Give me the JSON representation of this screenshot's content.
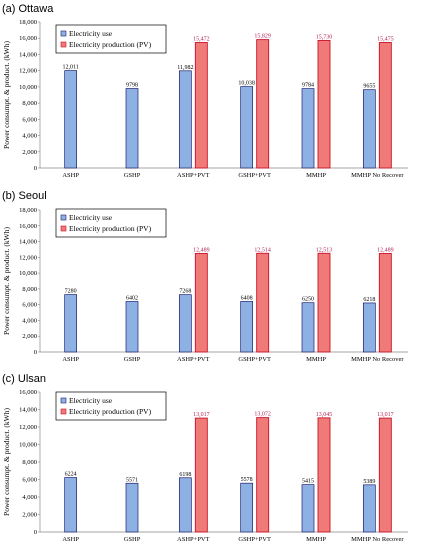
{
  "chart_data": [
    {
      "type": "bar",
      "title": "(a) Ottawa",
      "ylabel": "Power consumpt. & product. (kWh)",
      "ylim": [
        0,
        18000
      ],
      "yticks": [
        "0",
        "2,000",
        "4,000",
        "6,000",
        "8,000",
        "10,000",
        "12,000",
        "14,000",
        "16,000",
        "18,000"
      ],
      "categories": [
        "ASHP",
        "GSHP",
        "ASHP+PVT",
        "GSHP+PVT",
        "MMHP",
        "MMHP No Recover"
      ],
      "legend_position": "top-left",
      "series": [
        {
          "name": "Electricity use",
          "color": "#8eb1e4",
          "values": [
            12011,
            9798,
            11982,
            10038,
            9784,
            9655
          ],
          "labels": [
            "12,011",
            "9798",
            "11,982",
            "10,038",
            "9784",
            "9655"
          ]
        },
        {
          "name": "Electricity production (PV)",
          "color": "#f07a78",
          "values": [
            null,
            null,
            15472,
            15829,
            15730,
            15475
          ],
          "labels": [
            "",
            "",
            "15,472",
            "15,829",
            "15,730",
            "15,475"
          ]
        }
      ]
    },
    {
      "type": "bar",
      "title": "(b) Seoul",
      "ylabel": "Power consumpt. & product. (kWh)",
      "ylim": [
        0,
        18000
      ],
      "yticks": [
        "0",
        "2,000",
        "4,000",
        "6,000",
        "8,000",
        "10,000",
        "12,000",
        "14,000",
        "16,000",
        "18,000"
      ],
      "categories": [
        "ASHP",
        "GSHP",
        "ASHP+PVT",
        "GSHP+PVT",
        "MMHP",
        "MMHP No Recover"
      ],
      "legend_position": "top-left",
      "series": [
        {
          "name": "Electricity use",
          "color": "#8eb1e4",
          "values": [
            7280,
            6402,
            7268,
            6408,
            6250,
            6218
          ],
          "labels": [
            "7280",
            "6402",
            "7268",
            "6408",
            "6250",
            "6218"
          ]
        },
        {
          "name": "Electricity production (PV)",
          "color": "#f07a78",
          "values": [
            null,
            null,
            12489,
            12514,
            12513,
            12489
          ],
          "labels": [
            "",
            "",
            "12,489",
            "12,514",
            "12,513",
            "12,489"
          ]
        }
      ]
    },
    {
      "type": "bar",
      "title": "(c) Ulsan",
      "ylabel": "Power consumpt. & product. (kWh)",
      "ylim": [
        0,
        16000
      ],
      "yticks": [
        "0",
        "2,000",
        "4,000",
        "6,000",
        "8,000",
        "10,000",
        "12,000",
        "14,000",
        "16,000"
      ],
      "categories": [
        "ASHP",
        "GSHP",
        "ASHP+PVT",
        "GSHP+PVT",
        "MMHP",
        "MMHP No Recover"
      ],
      "legend_position": "top-left",
      "series": [
        {
          "name": "Electricity use",
          "color": "#8eb1e4",
          "values": [
            6224,
            5571,
            6198,
            5578,
            5415,
            5389
          ],
          "labels": [
            "6224",
            "5571",
            "6198",
            "5578",
            "5415",
            "5389"
          ]
        },
        {
          "name": "Electricity production (PV)",
          "color": "#f07a78",
          "values": [
            null,
            null,
            13017,
            13072,
            13045,
            13017
          ],
          "labels": [
            "",
            "",
            "13,017",
            "13,072",
            "13,045",
            "13,017"
          ]
        }
      ]
    }
  ]
}
